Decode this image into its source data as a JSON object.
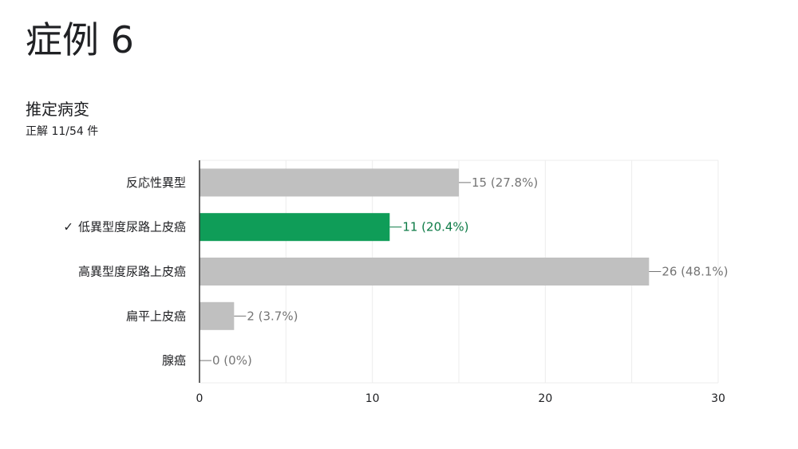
{
  "header": {
    "case_title": "症例 6",
    "question_title": "推定病変",
    "correct_count": "正解 11/54 件"
  },
  "colors": {
    "bar_default": "#c0c0c0",
    "bar_correct": "#0f9d58",
    "label_default": "#757575",
    "label_correct": "#0b7a45",
    "grid": "#ececec",
    "axis": "#333333"
  },
  "chart_data": {
    "type": "bar",
    "orientation": "horizontal",
    "categories": [
      "反応性異型",
      "低異型度尿路上皮癌",
      "高異型度尿路上皮癌",
      "扁平上皮癌",
      "腺癌"
    ],
    "values": [
      15,
      11,
      26,
      2,
      0
    ],
    "value_labels": [
      "15 (27.8%)",
      "11 (20.4%)",
      "26 (48.1%)",
      "2 (3.7%)",
      "0 (0%)"
    ],
    "correct_index": 1,
    "correct_mark": "✓",
    "xlim": [
      0,
      30
    ],
    "xticks": [
      0,
      10,
      20,
      30
    ],
    "grid": true,
    "legend": "none"
  }
}
